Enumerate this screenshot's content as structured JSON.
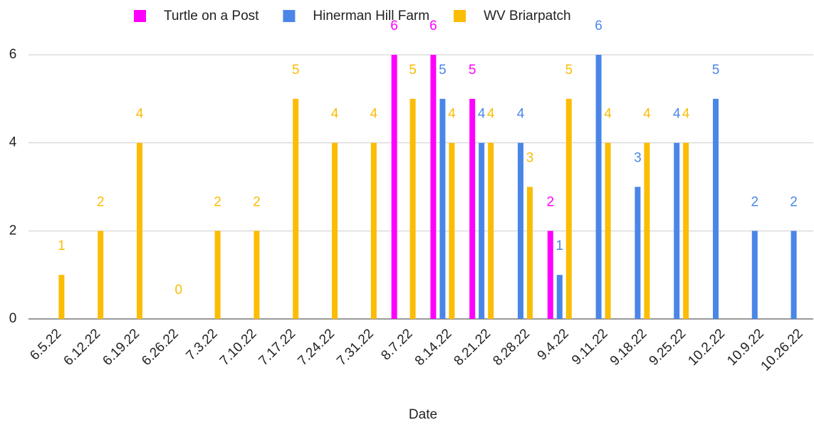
{
  "chart_data": {
    "type": "bar",
    "x_label": "Date",
    "categories": [
      "6.5.22",
      "6.12.22",
      "6.19.22",
      "6.26.22",
      "7.3.22",
      "7.10.22",
      "7.17.22",
      "7.24.22",
      "7.31.22",
      "8.7.22",
      "8.14.22",
      "8.21.22",
      "8.28.22",
      "9.4.22",
      "9.11.22",
      "9.18.22",
      "9.25.22",
      "10.2.22",
      "10.9.22",
      "10.26.22"
    ],
    "series": [
      {
        "name": "Turtle on a Post",
        "color": "#ff00ff",
        "values": [
          null,
          null,
          null,
          null,
          null,
          null,
          null,
          null,
          null,
          6,
          6,
          5,
          null,
          2,
          null,
          null,
          null,
          null,
          null,
          null
        ]
      },
      {
        "name": "Hinerman Hill Farm",
        "color": "#4a86e8",
        "values": [
          null,
          null,
          null,
          null,
          null,
          null,
          null,
          null,
          null,
          null,
          5,
          4,
          4,
          1,
          6,
          3,
          4,
          5,
          2,
          2
        ]
      },
      {
        "name": "WV Briarpatch",
        "color": "#fbbc04",
        "values": [
          1,
          2,
          4,
          0,
          2,
          2,
          5,
          4,
          4,
          5,
          4,
          4,
          3,
          5,
          4,
          4,
          4,
          null,
          null,
          null
        ]
      }
    ],
    "ylim": [
      0,
      6
    ],
    "yticks": [
      0,
      2,
      4,
      6
    ],
    "grid": true,
    "legend": "top"
  }
}
